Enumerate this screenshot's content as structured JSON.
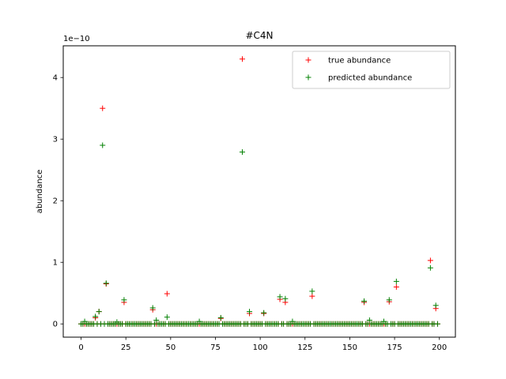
{
  "chart_data": {
    "type": "scatter",
    "title": "#C4N",
    "xlabel": "",
    "ylabel": "abundance",
    "y_scale_label": "1e−10",
    "xlim": [
      -9.95,
      208.95
    ],
    "ylim": [
      -0.215,
      4.515
    ],
    "x_ticks": [
      0,
      25,
      50,
      75,
      100,
      125,
      150,
      175,
      200
    ],
    "y_ticks": [
      0,
      1,
      2,
      3,
      4
    ],
    "grid": false,
    "legend_position": "upper right",
    "marker": "+",
    "n_points": 200,
    "series": [
      {
        "name": "true abundance",
        "color": "#ff0000",
        "baseline": 0,
        "points": [
          {
            "x": 8,
            "y": 0.1
          },
          {
            "x": 10,
            "y": 0.2
          },
          {
            "x": 12,
            "y": 3.5
          },
          {
            "x": 14,
            "y": 0.65
          },
          {
            "x": 24,
            "y": 0.35
          },
          {
            "x": 40,
            "y": 0.23
          },
          {
            "x": 48,
            "y": 0.49
          },
          {
            "x": 78,
            "y": 0.09
          },
          {
            "x": 90,
            "y": 4.3
          },
          {
            "x": 94,
            "y": 0.17
          },
          {
            "x": 102,
            "y": 0.17
          },
          {
            "x": 111,
            "y": 0.4
          },
          {
            "x": 114,
            "y": 0.35
          },
          {
            "x": 129,
            "y": 0.45
          },
          {
            "x": 158,
            "y": 0.35
          },
          {
            "x": 172,
            "y": 0.36
          },
          {
            "x": 176,
            "y": 0.6
          },
          {
            "x": 195,
            "y": 1.03
          },
          {
            "x": 198,
            "y": 0.25
          }
        ]
      },
      {
        "name": "predicted abundance",
        "color": "#008000",
        "baseline": 0,
        "points": [
          {
            "x": 2,
            "y": 0.04
          },
          {
            "x": 8,
            "y": 0.12
          },
          {
            "x": 10,
            "y": 0.2
          },
          {
            "x": 12,
            "y": 2.9
          },
          {
            "x": 14,
            "y": 0.66
          },
          {
            "x": 20,
            "y": 0.03
          },
          {
            "x": 24,
            "y": 0.39
          },
          {
            "x": 40,
            "y": 0.26
          },
          {
            "x": 42,
            "y": 0.06
          },
          {
            "x": 48,
            "y": 0.11
          },
          {
            "x": 66,
            "y": 0.04
          },
          {
            "x": 78,
            "y": 0.1
          },
          {
            "x": 90,
            "y": 2.79
          },
          {
            "x": 94,
            "y": 0.2
          },
          {
            "x": 102,
            "y": 0.18
          },
          {
            "x": 111,
            "y": 0.44
          },
          {
            "x": 114,
            "y": 0.41
          },
          {
            "x": 118,
            "y": 0.04
          },
          {
            "x": 129,
            "y": 0.53
          },
          {
            "x": 158,
            "y": 0.37
          },
          {
            "x": 161,
            "y": 0.06
          },
          {
            "x": 169,
            "y": 0.04
          },
          {
            "x": 172,
            "y": 0.39
          },
          {
            "x": 176,
            "y": 0.69
          },
          {
            "x": 195,
            "y": 0.91
          },
          {
            "x": 198,
            "y": 0.3
          }
        ]
      }
    ]
  }
}
